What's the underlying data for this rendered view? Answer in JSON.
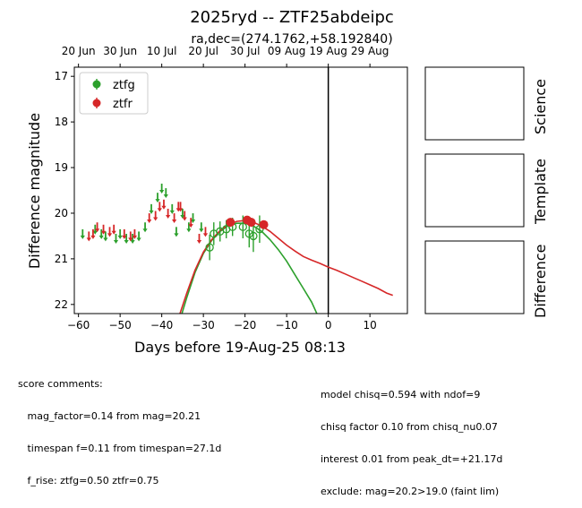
{
  "chart_data": {
    "type": "scatter",
    "title": "2025ryd -- ZTF25abdeipc",
    "subtitle": "ra,dec=(274.1762,+58.192840)",
    "xlabel": "Days before 19-Aug-25 08:13",
    "ylabel": "Difference magnitude",
    "xlim": [
      -61,
      19
    ],
    "ylim": [
      22.2,
      16.8
    ],
    "y_inverted": true,
    "x_ticks": [
      -60,
      -50,
      -40,
      -30,
      -20,
      -10,
      0,
      10
    ],
    "x_tick_labels": [
      "−60",
      "−50",
      "−40",
      "−30",
      "−20",
      "−10",
      "0",
      "10"
    ],
    "y_ticks": [
      17,
      18,
      19,
      20,
      21,
      22
    ],
    "y_tick_labels": [
      "17",
      "18",
      "19",
      "20",
      "21",
      "22"
    ],
    "top_axis_ticks": [
      {
        "label": "20 Jun",
        "x": -60
      },
      {
        "label": "30 Jun",
        "x": -50
      },
      {
        "label": "10 Jul",
        "x": -40
      },
      {
        "label": "20 Jul",
        "x": -30
      },
      {
        "label": "30 Jul",
        "x": -20
      },
      {
        "label": "09 Aug",
        "x": -10
      },
      {
        "label": "19 Aug",
        "x": 0
      },
      {
        "label": "29 Aug",
        "x": 10
      }
    ],
    "vline_x": 0,
    "legend": {
      "placement": "top-left"
    },
    "series": [
      {
        "name": "ztfg",
        "color": "#2ca02c",
        "upper_limits": [
          [
            -59.0,
            20.45
          ],
          [
            -56.0,
            20.35
          ],
          [
            -54.5,
            20.45
          ],
          [
            -53.5,
            20.5
          ],
          [
            -51.0,
            20.55
          ],
          [
            -50.0,
            20.45
          ],
          [
            -48.5,
            20.55
          ],
          [
            -47.0,
            20.55
          ],
          [
            -45.5,
            20.5
          ],
          [
            -44.0,
            20.3
          ],
          [
            -42.5,
            19.9
          ],
          [
            -41.0,
            19.65
          ],
          [
            -40.0,
            19.45
          ],
          [
            -39.0,
            19.55
          ],
          [
            -37.5,
            19.9
          ],
          [
            -36.5,
            20.4
          ],
          [
            -35.0,
            20.0
          ],
          [
            -33.5,
            20.3
          ],
          [
            -32.5,
            20.1
          ],
          [
            -30.5,
            20.3
          ]
        ],
        "detections": [
          {
            "x": -28.5,
            "y": 20.75,
            "err": 0.28
          },
          {
            "x": -27.5,
            "y": 20.45,
            "err": 0.25
          },
          {
            "x": -26.0,
            "y": 20.4,
            "err": 0.22
          },
          {
            "x": -24.5,
            "y": 20.35,
            "err": 0.2
          },
          {
            "x": -23.0,
            "y": 20.3,
            "err": 0.2
          },
          {
            "x": -20.5,
            "y": 20.3,
            "err": 0.25
          },
          {
            "x": -19.0,
            "y": 20.45,
            "err": 0.3
          },
          {
            "x": -18.0,
            "y": 20.5,
            "err": 0.35
          },
          {
            "x": -16.5,
            "y": 20.35,
            "err": 0.3
          }
        ],
        "model": [
          [
            -35.5,
            22.3
          ],
          [
            -34,
            21.85
          ],
          [
            -32,
            21.3
          ],
          [
            -30,
            20.88
          ],
          [
            -28,
            20.6
          ],
          [
            -26,
            20.4
          ],
          [
            -24,
            20.27
          ],
          [
            -22,
            20.22
          ],
          [
            -20,
            20.22
          ],
          [
            -18,
            20.28
          ],
          [
            -16,
            20.4
          ],
          [
            -14,
            20.58
          ],
          [
            -12,
            20.8
          ],
          [
            -10,
            21.05
          ],
          [
            -8,
            21.35
          ],
          [
            -6,
            21.65
          ],
          [
            -4,
            21.95
          ],
          [
            -2.5,
            22.25
          ]
        ]
      },
      {
        "name": "ztfr",
        "color": "#d62728",
        "upper_limits": [
          [
            -57.5,
            20.5
          ],
          [
            -56.5,
            20.45
          ],
          [
            -55.5,
            20.3
          ],
          [
            -54.0,
            20.35
          ],
          [
            -52.5,
            20.4
          ],
          [
            -51.5,
            20.35
          ],
          [
            -49.0,
            20.45
          ],
          [
            -47.5,
            20.5
          ],
          [
            -46.5,
            20.45
          ],
          [
            -43.0,
            20.1
          ],
          [
            -41.5,
            20.05
          ],
          [
            -40.5,
            19.85
          ],
          [
            -39.5,
            19.8
          ],
          [
            -38.5,
            20.0
          ],
          [
            -37.0,
            20.1
          ],
          [
            -36.0,
            19.85
          ],
          [
            -35.5,
            19.85
          ],
          [
            -34.5,
            20.05
          ],
          [
            -33.0,
            20.2
          ],
          [
            -31.0,
            20.55
          ],
          [
            -29.5,
            20.4
          ]
        ],
        "detections": [
          {
            "x": -23.5,
            "y": 20.2,
            "err": 0.08
          },
          {
            "x": -19.5,
            "y": 20.15,
            "err": 0.08
          },
          {
            "x": -18.5,
            "y": 20.2,
            "err": 0.1
          },
          {
            "x": -15.5,
            "y": 20.25,
            "err": 0.08
          }
        ],
        "model": [
          [
            -36.0,
            22.3
          ],
          [
            -34,
            21.75
          ],
          [
            -32,
            21.25
          ],
          [
            -30,
            20.85
          ],
          [
            -28,
            20.58
          ],
          [
            -26,
            20.38
          ],
          [
            -24,
            20.25
          ],
          [
            -22,
            20.18
          ],
          [
            -20,
            20.16
          ],
          [
            -18,
            20.2
          ],
          [
            -16,
            20.28
          ],
          [
            -14,
            20.4
          ],
          [
            -12,
            20.55
          ],
          [
            -10,
            20.7
          ],
          [
            -8,
            20.83
          ],
          [
            -6,
            20.95
          ],
          [
            -4,
            21.03
          ],
          [
            -2,
            21.1
          ],
          [
            0,
            21.18
          ],
          [
            2,
            21.25
          ],
          [
            4,
            21.33
          ],
          [
            6,
            21.41
          ],
          [
            8,
            21.49
          ],
          [
            10,
            21.57
          ],
          [
            12,
            21.65
          ],
          [
            14,
            21.75
          ],
          [
            15.5,
            21.8
          ]
        ]
      }
    ]
  },
  "panels": {
    "science_label": "Science",
    "template_label": "Template",
    "difference_label": "Difference"
  },
  "comments": {
    "left": [
      "score comments:",
      "   mag_factor=0.14 from mag=20.21",
      "   timespan f=0.11 from timespan=27.1d",
      "   f_rise: ztfg=0.50 ztfr=0.75"
    ],
    "right": [
      "model chisq=0.594 with ndof=9",
      "chisq factor 0.10 from chisq_nu0.07",
      "interest 0.01 from peak_dt=+21.17d",
      "exclude: mag=20.2>19.0 (faint lim)"
    ]
  }
}
